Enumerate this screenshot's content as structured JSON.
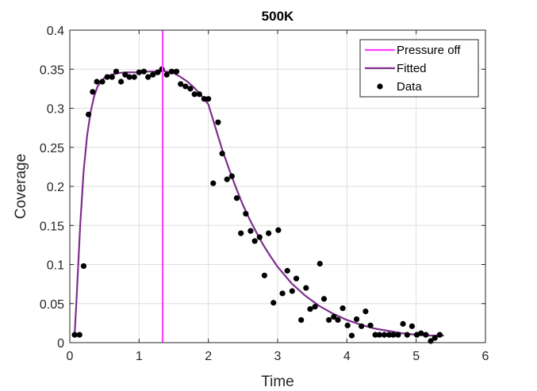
{
  "chart_data": {
    "type": "line",
    "title": "500K",
    "xlabel": "Time",
    "ylabel": "Coverage",
    "xlim": [
      0,
      6
    ],
    "ylim": [
      0,
      0.4
    ],
    "xticks": [
      0,
      1,
      2,
      3,
      4,
      5,
      6
    ],
    "yticks": [
      0,
      0.05,
      0.1,
      0.15,
      0.2,
      0.25,
      0.3,
      0.35,
      0.4
    ],
    "xtick_labels": [
      "0",
      "1",
      "2",
      "3",
      "4",
      "5",
      "6"
    ],
    "ytick_labels": [
      "0",
      "0.05",
      "0.1",
      "0.15",
      "0.2",
      "0.25",
      "0.3",
      "0.35",
      "0.4"
    ],
    "grid": true,
    "legend_position": "top-right",
    "colors": {
      "pressure_off": "#ff40ff",
      "fitted": "#7e2f8e",
      "data": "#000000"
    },
    "series": [
      {
        "name": "Pressure off",
        "kind": "vline",
        "x": 1.34
      },
      {
        "name": "Fitted",
        "kind": "line",
        "x": [
          0.07,
          0.1,
          0.15,
          0.2,
          0.25,
          0.3,
          0.35,
          0.4,
          0.5,
          0.6,
          0.7,
          0.8,
          0.9,
          1.0,
          1.1,
          1.2,
          1.34,
          1.5,
          1.6,
          1.7,
          1.8,
          1.9,
          2.0,
          2.1,
          2.2,
          2.3,
          2.4,
          2.5,
          2.6,
          2.7,
          2.8,
          2.9,
          3.0,
          3.2,
          3.4,
          3.6,
          3.8,
          4.0,
          4.2,
          4.4,
          4.6,
          4.8,
          5.0,
          5.2,
          5.4
        ],
        "y": [
          0.01,
          0.06,
          0.15,
          0.22,
          0.265,
          0.295,
          0.315,
          0.328,
          0.339,
          0.343,
          0.345,
          0.346,
          0.346,
          0.346,
          0.347,
          0.347,
          0.348,
          0.345,
          0.34,
          0.334,
          0.326,
          0.316,
          0.305,
          0.276,
          0.247,
          0.222,
          0.198,
          0.176,
          0.157,
          0.14,
          0.124,
          0.11,
          0.097,
          0.076,
          0.06,
          0.047,
          0.037,
          0.029,
          0.023,
          0.018,
          0.015,
          0.012,
          0.01,
          0.009,
          0.009
        ]
      },
      {
        "name": "Data",
        "kind": "scatter",
        "x": [
          0.07,
          0.14,
          0.2,
          0.27,
          0.33,
          0.39,
          0.47,
          0.54,
          0.61,
          0.67,
          0.74,
          0.8,
          0.86,
          0.93,
          1.0,
          1.07,
          1.13,
          1.2,
          1.27,
          1.33,
          1.4,
          1.47,
          1.54,
          1.6,
          1.67,
          1.74,
          1.8,
          1.87,
          1.94,
          2.0,
          2.07,
          2.14,
          2.2,
          2.27,
          2.34,
          2.41,
          2.47,
          2.54,
          2.61,
          2.67,
          2.74,
          2.81,
          2.87,
          2.94,
          3.01,
          3.07,
          3.14,
          3.21,
          3.27,
          3.34,
          3.41,
          3.47,
          3.54,
          3.61,
          3.67,
          3.74,
          3.81,
          3.87,
          3.94,
          4.01,
          4.07,
          4.14,
          4.21,
          4.27,
          4.34,
          4.41,
          4.47,
          4.54,
          4.61,
          4.67,
          4.74,
          4.81,
          4.87,
          4.94,
          5.01,
          5.07,
          5.14,
          5.21,
          5.27,
          5.34
        ],
        "y": [
          0.01,
          0.01,
          0.098,
          0.292,
          0.321,
          0.334,
          0.334,
          0.34,
          0.34,
          0.347,
          0.334,
          0.343,
          0.34,
          0.34,
          0.346,
          0.347,
          0.34,
          0.343,
          0.346,
          0.35,
          0.343,
          0.347,
          0.347,
          0.331,
          0.328,
          0.325,
          0.318,
          0.318,
          0.312,
          0.312,
          0.204,
          0.282,
          0.242,
          0.209,
          0.213,
          0.185,
          0.14,
          0.165,
          0.143,
          0.13,
          0.135,
          0.086,
          0.14,
          0.051,
          0.144,
          0.063,
          0.092,
          0.066,
          0.082,
          0.029,
          0.07,
          0.043,
          0.046,
          0.101,
          0.056,
          0.029,
          0.033,
          0.029,
          0.044,
          0.022,
          0.009,
          0.03,
          0.021,
          0.04,
          0.022,
          0.01,
          0.01,
          0.01,
          0.01,
          0.01,
          0.01,
          0.024,
          0.01,
          0.021,
          0.01,
          0.012,
          0.01,
          0.002,
          0.006,
          0.01
        ]
      }
    ]
  }
}
